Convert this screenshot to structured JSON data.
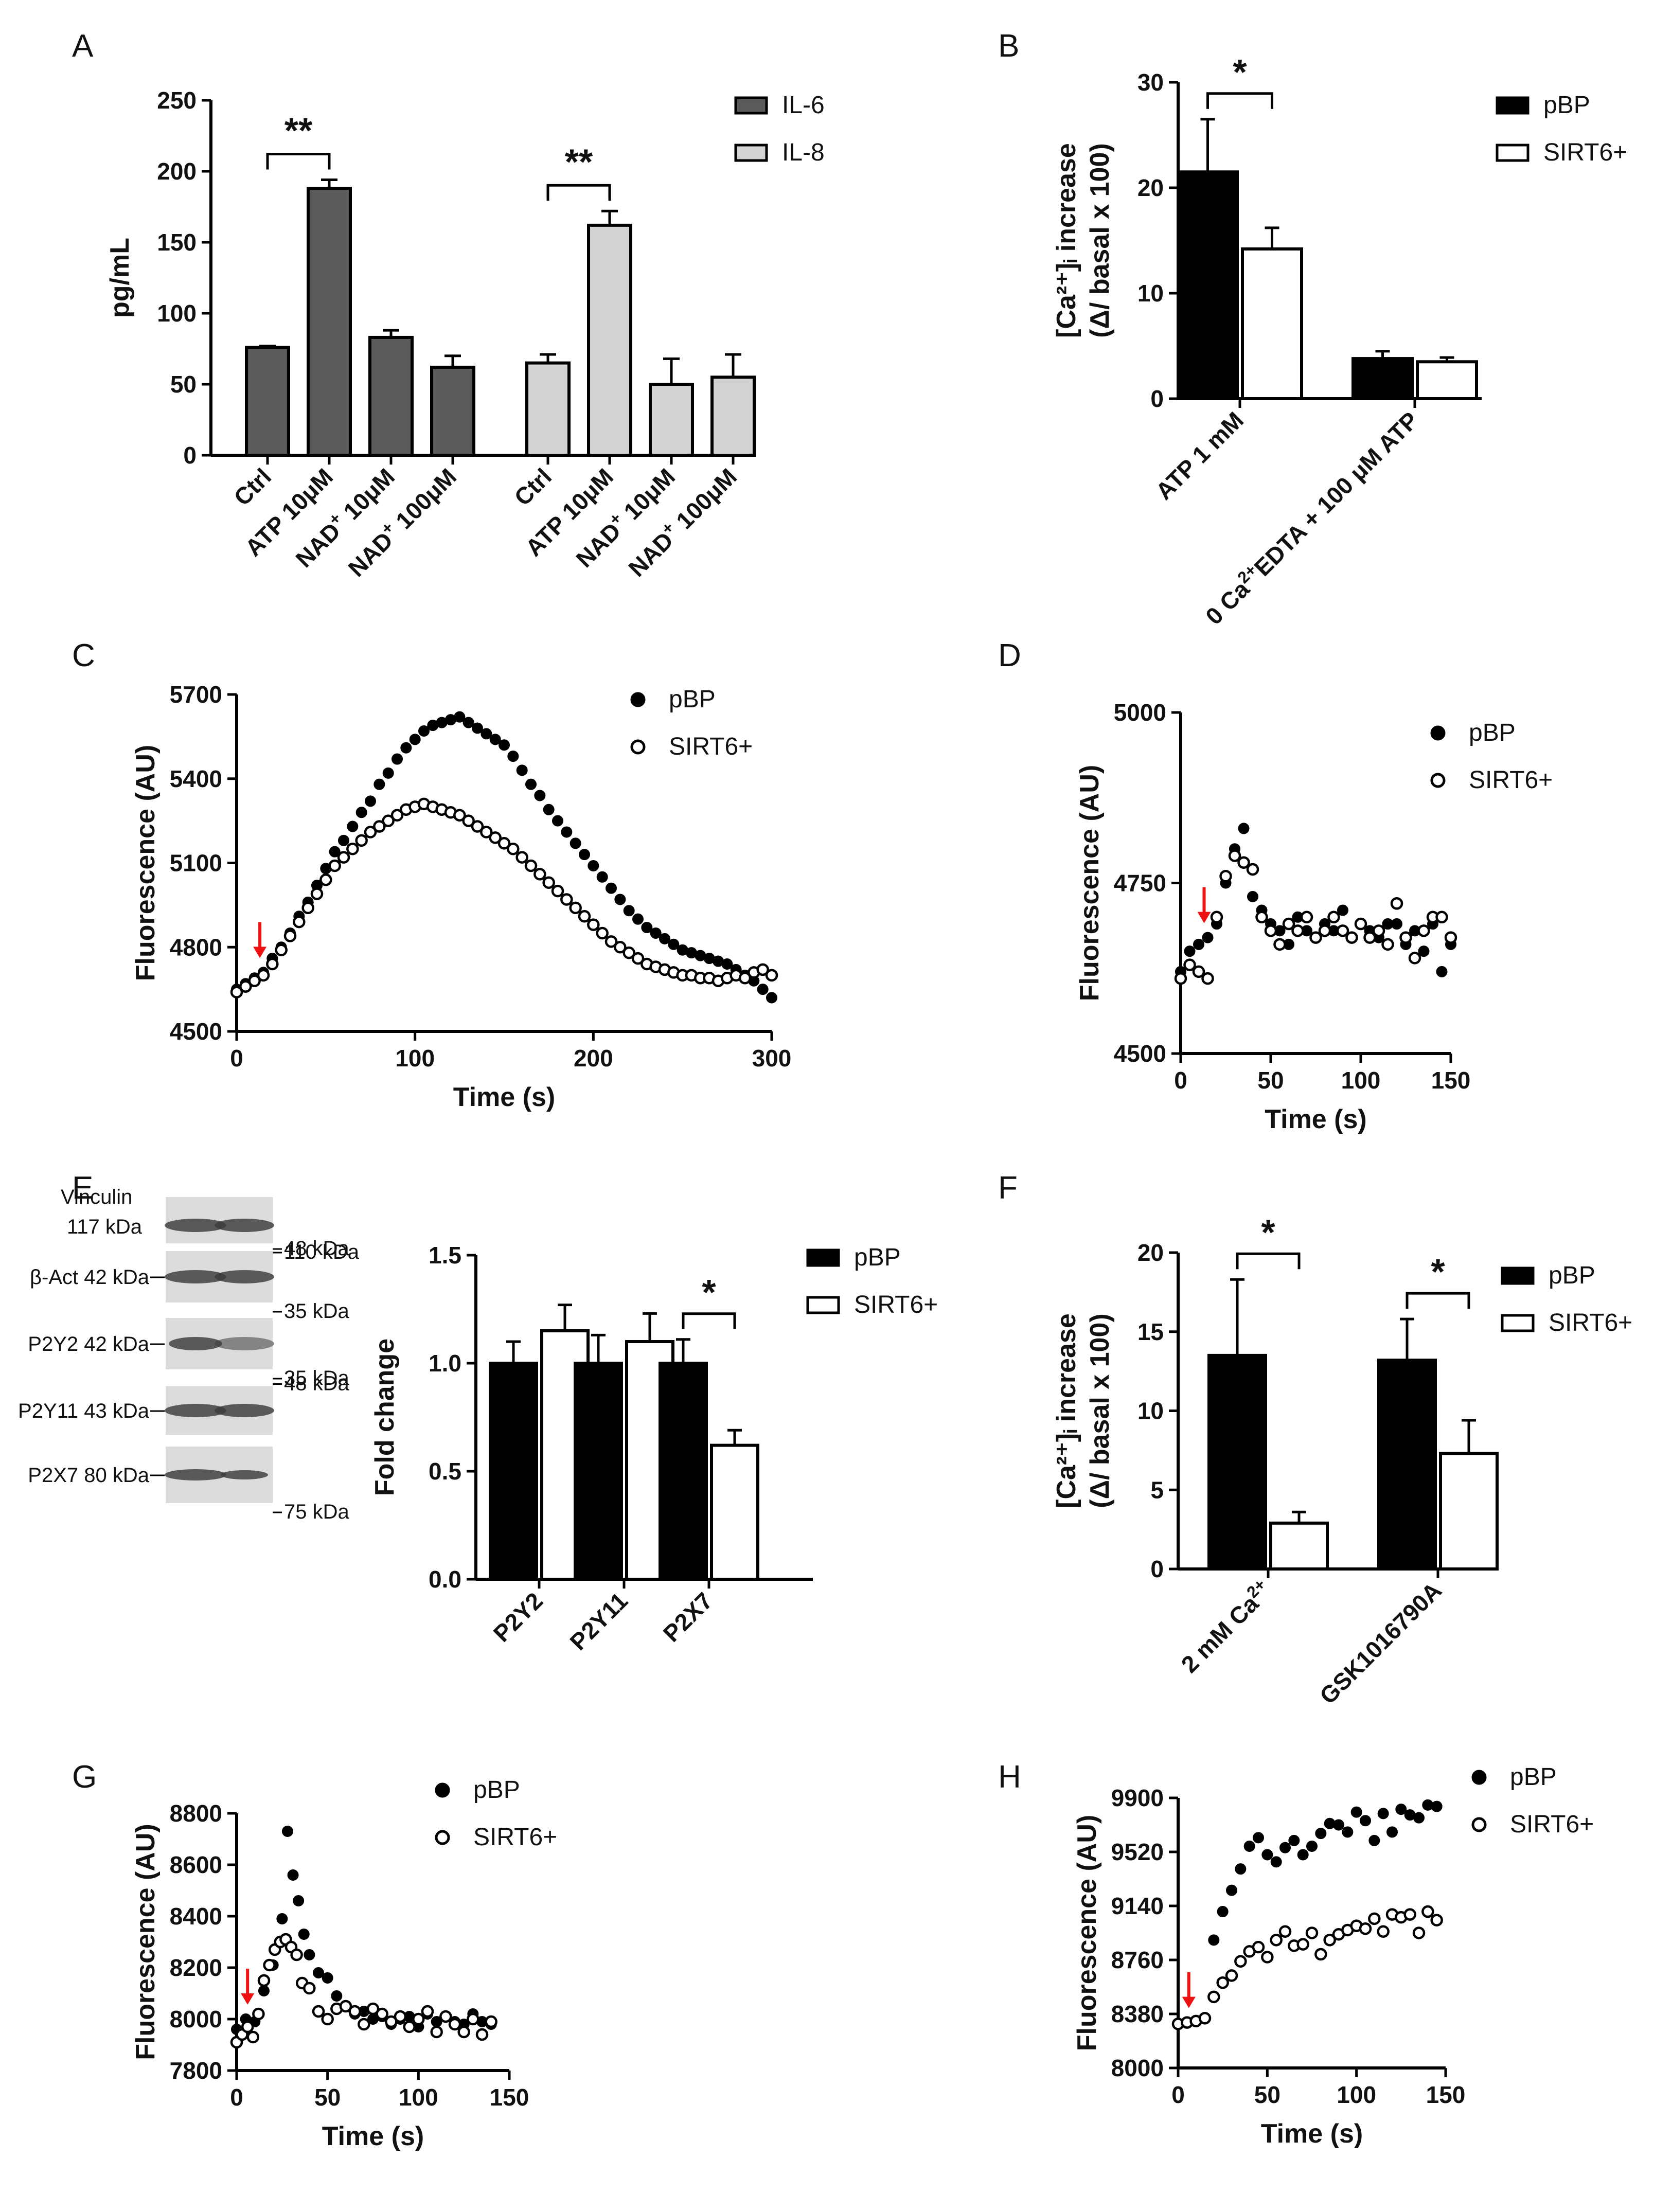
{
  "chart_data": [
    {
      "panel": "A",
      "type": "bar",
      "ylabel": "pg/mL",
      "ylim": [
        0,
        250
      ],
      "yticks": [
        "0",
        "50",
        "100",
        "150",
        "200",
        "250"
      ],
      "categories": [
        "Ctrl",
        "ATP 10μM",
        "NAD+ 10μM",
        "NAD+ 100μM"
      ],
      "category_labels": [
        {
          "pre": "Ctrl",
          "sup": "",
          "post": ""
        },
        {
          "pre": "ATP 10μM",
          "sup": "",
          "post": ""
        },
        {
          "pre": "NAD",
          "sup": "+",
          "post": " 10μM"
        },
        {
          "pre": "NAD",
          "sup": "+",
          "post": " 100μM"
        }
      ],
      "series": [
        {
          "name": "IL-6",
          "color": "#5a5a5a",
          "values": [
            76,
            188,
            83,
            62
          ],
          "errors": [
            1,
            6,
            5,
            8
          ]
        },
        {
          "name": "IL-8",
          "color": "#d3d3d3",
          "values": [
            65,
            162,
            50,
            55
          ],
          "errors": [
            6,
            10,
            18,
            16
          ]
        }
      ],
      "significance": [
        {
          "label": "**",
          "series": 0,
          "from": 0,
          "to": 1
        },
        {
          "label": "**",
          "series": 1,
          "from": 0,
          "to": 1
        }
      ]
    },
    {
      "panel": "B",
      "type": "bar",
      "ylabel_l1": "[Ca²⁺]ᵢ increase",
      "ylabel_l2": "(Δ/ basal x 100)",
      "ylim": [
        0,
        30
      ],
      "yticks": [
        "0",
        "10",
        "20",
        "30"
      ],
      "categories": [
        "ATP 1 mM",
        "0 Ca2+EDTA + 100 μM ATP"
      ],
      "category_labels": [
        {
          "pre": "ATP 1 mM",
          "sup": "",
          "post": ""
        },
        {
          "pre": "0 Ca",
          "sup": "2+",
          "post": "EDTA + 100 μM ATP"
        }
      ],
      "series": [
        {
          "name": "pBP",
          "color": "#000000",
          "values": [
            21.5,
            3.8
          ],
          "errors": [
            5,
            0.7
          ]
        },
        {
          "name": "SIRT6+",
          "color": "#ffffff",
          "values": [
            14.2,
            3.5
          ],
          "errors": [
            2,
            0.4
          ]
        }
      ],
      "significance": [
        {
          "label": "*",
          "category": 0
        }
      ]
    },
    {
      "panel": "C",
      "type": "scatter",
      "xlabel": "Time (s)",
      "ylabel": "Fluorescence (AU)",
      "xlim": [
        0,
        300
      ],
      "ylim": [
        4500,
        5700
      ],
      "xticks": [
        "0",
        "100",
        "200",
        "300"
      ],
      "yticks": [
        "4500",
        "4800",
        "5100",
        "5400",
        "5700"
      ],
      "arrow_x": 13,
      "series": [
        {
          "name": "pBP",
          "filled": true,
          "x": [
            0,
            5,
            10,
            15,
            20,
            25,
            30,
            35,
            40,
            45,
            50,
            55,
            60,
            65,
            70,
            75,
            80,
            85,
            90,
            95,
            100,
            105,
            110,
            115,
            120,
            125,
            130,
            135,
            140,
            145,
            150,
            155,
            160,
            165,
            170,
            175,
            180,
            185,
            190,
            195,
            200,
            205,
            210,
            215,
            220,
            225,
            230,
            235,
            240,
            245,
            250,
            255,
            260,
            265,
            270,
            275,
            280,
            285,
            290,
            295,
            300
          ],
          "y": [
            4650,
            4670,
            4690,
            4710,
            4760,
            4800,
            4850,
            4910,
            4960,
            5020,
            5080,
            5140,
            5180,
            5230,
            5280,
            5320,
            5380,
            5420,
            5470,
            5510,
            5540,
            5570,
            5590,
            5600,
            5610,
            5620,
            5600,
            5580,
            5560,
            5540,
            5520,
            5480,
            5430,
            5380,
            5340,
            5290,
            5250,
            5210,
            5170,
            5130,
            5090,
            5050,
            5010,
            4970,
            4930,
            4900,
            4870,
            4850,
            4830,
            4810,
            4790,
            4780,
            4770,
            4760,
            4750,
            4740,
            4720,
            4700,
            4680,
            4650,
            4620
          ]
        },
        {
          "name": "SIRT6+",
          "filled": false,
          "x": [
            0,
            5,
            10,
            15,
            20,
            25,
            30,
            35,
            40,
            45,
            50,
            55,
            60,
            65,
            70,
            75,
            80,
            85,
            90,
            95,
            100,
            105,
            110,
            115,
            120,
            125,
            130,
            135,
            140,
            145,
            150,
            155,
            160,
            165,
            170,
            175,
            180,
            185,
            190,
            195,
            200,
            205,
            210,
            215,
            220,
            225,
            230,
            235,
            240,
            245,
            250,
            255,
            260,
            265,
            270,
            275,
            280,
            285,
            290,
            295,
            300
          ],
          "y": [
            4640,
            4660,
            4680,
            4700,
            4740,
            4790,
            4840,
            4890,
            4940,
            4990,
            5040,
            5090,
            5120,
            5150,
            5180,
            5210,
            5230,
            5250,
            5270,
            5290,
            5300,
            5310,
            5300,
            5290,
            5280,
            5270,
            5250,
            5230,
            5210,
            5190,
            5170,
            5150,
            5120,
            5090,
            5060,
            5030,
            5000,
            4970,
            4940,
            4910,
            4880,
            4850,
            4820,
            4800,
            4780,
            4760,
            4740,
            4730,
            4720,
            4710,
            4700,
            4700,
            4690,
            4690,
            4680,
            4690,
            4700,
            4690,
            4710,
            4720,
            4700
          ]
        }
      ]
    },
    {
      "panel": "D",
      "type": "scatter",
      "xlabel": "Time (s)",
      "ylabel": "Fluorescence (AU)",
      "xlim": [
        0,
        150
      ],
      "ylim": [
        4500,
        5000
      ],
      "xticks": [
        "0",
        "50",
        "100",
        "150"
      ],
      "yticks": [
        "4500",
        "4750",
        "5000"
      ],
      "arrow_x": 13,
      "series": [
        {
          "name": "pBP",
          "filled": true,
          "x": [
            0,
            5,
            10,
            15,
            20,
            25,
            30,
            35,
            40,
            45,
            50,
            55,
            60,
            65,
            70,
            75,
            80,
            85,
            90,
            95,
            100,
            105,
            110,
            115,
            120,
            125,
            130,
            135,
            140,
            145,
            150
          ],
          "y": [
            4620,
            4650,
            4660,
            4670,
            4690,
            4750,
            4800,
            4830,
            4730,
            4710,
            4690,
            4680,
            4660,
            4700,
            4680,
            4670,
            4690,
            4680,
            4710,
            4670,
            4690,
            4680,
            4670,
            4690,
            4690,
            4660,
            4680,
            4650,
            4690,
            4620,
            4660
          ]
        },
        {
          "name": "SIRT6+",
          "filled": false,
          "x": [
            0,
            5,
            10,
            15,
            20,
            25,
            30,
            35,
            40,
            45,
            50,
            55,
            60,
            65,
            70,
            75,
            80,
            85,
            90,
            95,
            100,
            105,
            110,
            115,
            120,
            125,
            130,
            135,
            140,
            145,
            150
          ],
          "y": [
            4610,
            4630,
            4620,
            4610,
            4700,
            4760,
            4790,
            4780,
            4770,
            4700,
            4680,
            4660,
            4690,
            4680,
            4700,
            4670,
            4680,
            4700,
            4680,
            4670,
            4690,
            4670,
            4680,
            4660,
            4720,
            4670,
            4640,
            4680,
            4700,
            4700,
            4670
          ]
        }
      ]
    },
    {
      "panel": "E",
      "type": "bar",
      "ylabel": "Fold change",
      "ylim": [
        0,
        1.5
      ],
      "yticks": [
        "0.0",
        "0.5",
        "1.0",
        "1.5"
      ],
      "categories": [
        "P2Y2",
        "P2Y11",
        "P2X7"
      ],
      "series": [
        {
          "name": "pBP",
          "color": "#000000",
          "values": [
            1.0,
            1.0,
            1.0
          ],
          "errors": [
            0.1,
            0.13,
            0.11
          ]
        },
        {
          "name": "SIRT6+",
          "color": "#ffffff",
          "values": [
            1.15,
            1.1,
            0.62
          ],
          "errors": [
            0.12,
            0.13,
            0.07
          ]
        }
      ],
      "significance": [
        {
          "label": "*",
          "category": 2
        }
      ]
    },
    {
      "panel": "F",
      "type": "bar",
      "ylabel_l1": "[Ca²⁺]ᵢ increase",
      "ylabel_l2": "(Δ/ basal x 100)",
      "ylim": [
        0,
        20
      ],
      "yticks": [
        "0",
        "5",
        "10",
        "15",
        "20"
      ],
      "categories": [
        "2 mM Ca2+",
        "GSK1016790A"
      ],
      "category_labels": [
        {
          "pre": "2 mM Ca",
          "sup": "2+",
          "post": ""
        },
        {
          "pre": "GSK1016790A",
          "sup": "",
          "post": ""
        }
      ],
      "series": [
        {
          "name": "pBP",
          "color": "#000000",
          "values": [
            13.5,
            13.2
          ],
          "errors": [
            4.8,
            2.6
          ]
        },
        {
          "name": "SIRT6+",
          "color": "#ffffff",
          "values": [
            2.9,
            7.3
          ],
          "errors": [
            0.7,
            2.1
          ]
        }
      ],
      "significance": [
        {
          "label": "*",
          "category": 0
        },
        {
          "label": "*",
          "category": 1
        }
      ]
    },
    {
      "panel": "G",
      "type": "scatter",
      "xlabel": "Time (s)",
      "ylabel": "Fluorescence (AU)",
      "xlim": [
        0,
        150
      ],
      "ylim": [
        7800,
        8800
      ],
      "xticks": [
        "0",
        "50",
        "100",
        "150"
      ],
      "yticks": [
        "7800",
        "8000",
        "8200",
        "8400",
        "8600",
        "8800"
      ],
      "arrow_x": 6,
      "series": [
        {
          "name": "pBP",
          "filled": true,
          "x": [
            0,
            5,
            10,
            15,
            20,
            25,
            28,
            31,
            34,
            37,
            40,
            45,
            50,
            55,
            60,
            65,
            70,
            75,
            80,
            85,
            90,
            95,
            100,
            105,
            110,
            115,
            120,
            125,
            130,
            135,
            140
          ],
          "y": [
            7960,
            8000,
            7990,
            8110,
            8210,
            8390,
            8730,
            8560,
            8460,
            8330,
            8250,
            8180,
            8160,
            8090,
            8050,
            8020,
            8030,
            8000,
            8010,
            7980,
            8000,
            8010,
            7970,
            8020,
            7990,
            8010,
            7990,
            7980,
            8020,
            7990,
            7980
          ]
        },
        {
          "name": "SIRT6+",
          "filled": false,
          "x": [
            0,
            3,
            6,
            9,
            12,
            15,
            18,
            21,
            24,
            27,
            30,
            33,
            36,
            40,
            45,
            50,
            55,
            60,
            65,
            70,
            75,
            80,
            85,
            90,
            95,
            100,
            105,
            110,
            115,
            120,
            125,
            130,
            135,
            140
          ],
          "y": [
            7910,
            7940,
            7970,
            7930,
            8020,
            8150,
            8210,
            8270,
            8300,
            8310,
            8280,
            8250,
            8140,
            8120,
            8030,
            8000,
            8040,
            8050,
            8030,
            7980,
            8040,
            8020,
            7990,
            8010,
            7970,
            8000,
            8030,
            7950,
            8010,
            7980,
            7950,
            8000,
            7940,
            7990
          ]
        }
      ]
    },
    {
      "panel": "H",
      "type": "scatter",
      "xlabel": "Time (s)",
      "ylabel": "Fluorescence (AU)",
      "xlim": [
        0,
        150
      ],
      "ylim": [
        8000,
        9900
      ],
      "xticks": [
        "0",
        "50",
        "100",
        "150"
      ],
      "yticks": [
        "8000",
        "8380",
        "8760",
        "9140",
        "9520",
        "9900"
      ],
      "arrow_x": 6,
      "series": [
        {
          "name": "pBP",
          "filled": true,
          "x": [
            0,
            5,
            10,
            15,
            20,
            25,
            30,
            35,
            40,
            45,
            50,
            55,
            60,
            65,
            70,
            75,
            80,
            85,
            90,
            95,
            100,
            105,
            110,
            115,
            120,
            125,
            130,
            135,
            140,
            145
          ],
          "y": [
            8310,
            8320,
            8330,
            8350,
            8900,
            9100,
            9250,
            9400,
            9560,
            9620,
            9500,
            9450,
            9550,
            9600,
            9500,
            9560,
            9650,
            9720,
            9710,
            9660,
            9800,
            9740,
            9600,
            9790,
            9660,
            9820,
            9780,
            9760,
            9850,
            9840
          ]
        },
        {
          "name": "SIRT6+",
          "filled": false,
          "x": [
            0,
            5,
            10,
            15,
            20,
            25,
            30,
            35,
            40,
            45,
            50,
            55,
            60,
            65,
            70,
            75,
            80,
            85,
            90,
            95,
            100,
            105,
            110,
            115,
            120,
            125,
            130,
            135,
            140,
            145
          ],
          "y": [
            8310,
            8320,
            8330,
            8350,
            8500,
            8600,
            8650,
            8750,
            8820,
            8850,
            8780,
            8900,
            8960,
            8860,
            8870,
            8950,
            8800,
            8900,
            8940,
            8970,
            9000,
            8980,
            9050,
            8960,
            9080,
            9060,
            9080,
            8950,
            9100,
            9040
          ]
        }
      ]
    }
  ],
  "panel_labels": [
    "A",
    "B",
    "C",
    "D",
    "E",
    "F",
    "G",
    "H"
  ],
  "blot": {
    "rows": [
      {
        "label_l1": "Vinculin",
        "label_l2": "117 kDa",
        "markers": [
          {
            "t": "110 kDa",
            "pos": "bottom"
          }
        ]
      },
      {
        "label_l1": "β-Act 42 kDa",
        "label_l2": "",
        "markers": [
          {
            "t": "48 kDa",
            "pos": "top"
          },
          {
            "t": "35 kDa",
            "pos": "bottom"
          }
        ]
      },
      {
        "label_l1": "P2Y2 42 kDa",
        "label_l2": "",
        "markers": [
          {
            "t": "35 kDa",
            "pos": "bottom"
          }
        ]
      },
      {
        "label_l1": "P2Y11 43 kDa",
        "label_l2": "",
        "markers": [
          {
            "t": "48 kDa",
            "pos": "top"
          }
        ]
      },
      {
        "label_l1": "P2X7 80 kDa",
        "label_l2": "",
        "markers": [
          {
            "t": "75 kDa",
            "pos": "bottom"
          }
        ]
      }
    ]
  }
}
